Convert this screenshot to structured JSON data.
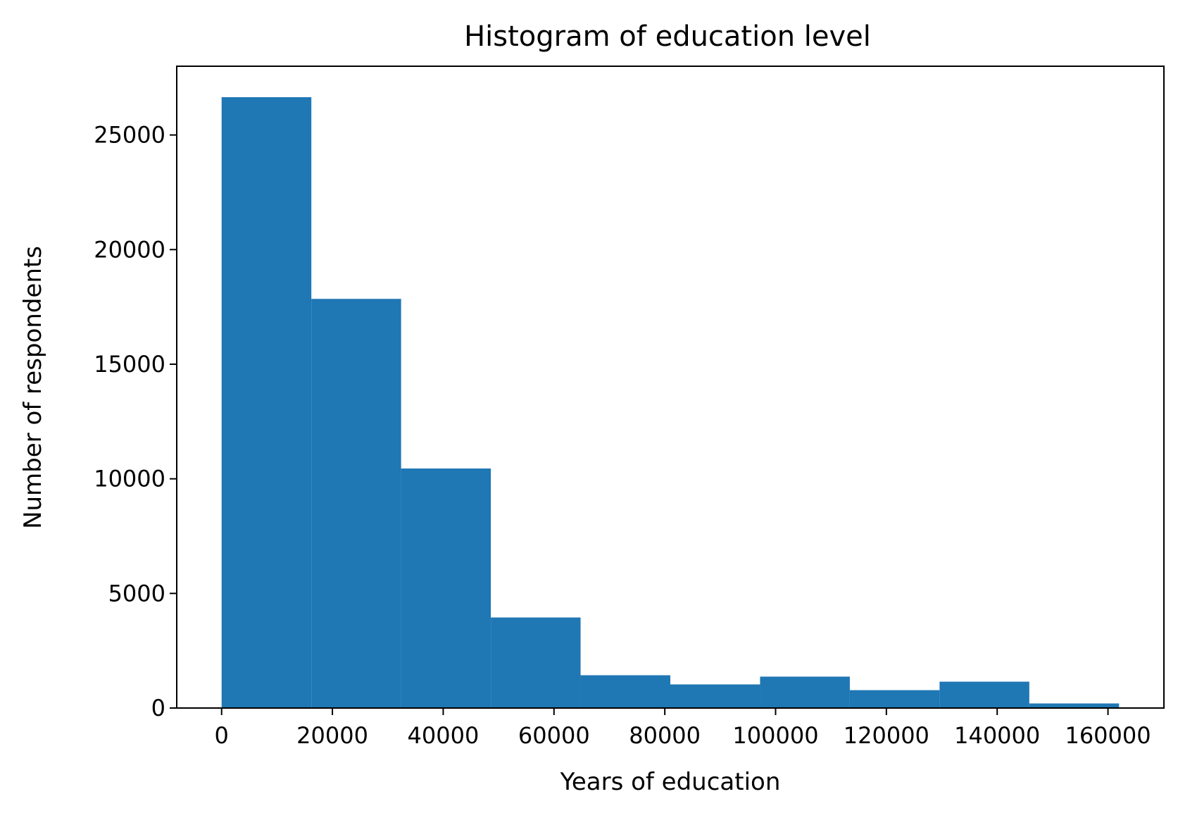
{
  "chart_data": {
    "type": "bar",
    "title": "Histogram of education level",
    "xlabel": "Years of education",
    "ylabel": "Number of respondents",
    "bar_color": "#1f77b4",
    "xlim": [
      -8100,
      170100
    ],
    "ylim": [
      0,
      28000
    ],
    "xticks": [
      0,
      20000,
      40000,
      60000,
      80000,
      100000,
      120000,
      140000,
      160000
    ],
    "xtick_labels": [
      "0",
      "20000",
      "40000",
      "60000",
      "80000",
      "100000",
      "120000",
      "140000",
      "160000"
    ],
    "yticks": [
      0,
      5000,
      10000,
      15000,
      20000,
      25000
    ],
    "ytick_labels": [
      "0",
      "5000",
      "10000",
      "15000",
      "20000",
      "25000"
    ],
    "bins": [
      {
        "x0": 0,
        "x1": 16200,
        "count": 26650
      },
      {
        "x0": 16200,
        "x1": 32400,
        "count": 17850
      },
      {
        "x0": 32400,
        "x1": 48600,
        "count": 10450
      },
      {
        "x0": 48600,
        "x1": 64800,
        "count": 3950
      },
      {
        "x0": 64800,
        "x1": 81000,
        "count": 1430
      },
      {
        "x0": 81000,
        "x1": 97200,
        "count": 1030
      },
      {
        "x0": 97200,
        "x1": 113400,
        "count": 1370
      },
      {
        "x0": 113400,
        "x1": 129600,
        "count": 780
      },
      {
        "x0": 129600,
        "x1": 145800,
        "count": 1150
      },
      {
        "x0": 145800,
        "x1": 162000,
        "count": 200
      }
    ],
    "grid": false,
    "legend": "none"
  }
}
